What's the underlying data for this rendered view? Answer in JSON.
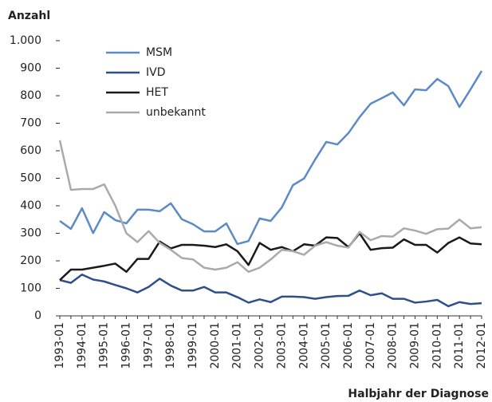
{
  "chart_data": {
    "type": "line",
    "y_label": "Anzahl",
    "x_label": "Halbjahr der Diagnose",
    "categories": [
      "1993-01",
      null,
      "1994-01",
      null,
      "1995-01",
      null,
      "1996-01",
      null,
      "1997-01",
      null,
      "1998-01",
      null,
      "1999-01",
      null,
      "2000-01",
      null,
      "2001-01",
      null,
      "2002-01",
      null,
      "2003-01",
      null,
      "2004-01",
      null,
      "2005-01",
      null,
      "2006-01",
      null,
      "2007-01",
      null,
      "2008-01",
      null,
      "2009-01",
      null,
      "2010-01",
      null,
      "2011-01",
      null,
      "2012-01"
    ],
    "series": [
      {
        "name": "MSM",
        "color": "#5b8ac6",
        "values": [
          345,
          316,
          391,
          301,
          377,
          348,
          336,
          386,
          386,
          380,
          409,
          351,
          333,
          307,
          307,
          336,
          261,
          272,
          354,
          345,
          394,
          475,
          499,
          568,
          632,
          623,
          664,
          722,
          771,
          791,
          812,
          765,
          823,
          820,
          861,
          835,
          759,
          823,
          890
        ]
      },
      {
        "name": "IVD",
        "color": "#2e4f8a",
        "values": [
          130,
          120,
          150,
          132,
          125,
          112,
          100,
          85,
          105,
          135,
          110,
          92,
          92,
          105,
          85,
          85,
          68,
          48,
          60,
          50,
          70,
          70,
          68,
          62,
          68,
          72,
          73,
          92,
          75,
          82,
          62,
          62,
          48,
          52,
          58,
          35,
          50,
          43,
          46
        ]
      },
      {
        "name": "HET",
        "color": "#1a1a1a",
        "values": [
          130,
          168,
          168,
          175,
          182,
          190,
          160,
          207,
          207,
          270,
          245,
          258,
          258,
          255,
          250,
          260,
          235,
          185,
          265,
          240,
          250,
          235,
          260,
          255,
          285,
          283,
          250,
          300,
          240,
          246,
          248,
          278,
          258,
          258,
          230,
          265,
          285,
          263,
          260
        ]
      },
      {
        "name": "unbekannt",
        "color": "#aaaaaa",
        "values": [
          638,
          458,
          461,
          461,
          478,
          400,
          300,
          268,
          308,
          265,
          240,
          210,
          205,
          175,
          168,
          175,
          195,
          160,
          175,
          205,
          240,
          235,
          222,
          255,
          268,
          255,
          248,
          305,
          275,
          290,
          288,
          318,
          310,
          298,
          315,
          317,
          350,
          318,
          322
        ]
      }
    ],
    "ylim": [
      0,
      1000
    ],
    "yticks": [
      0,
      100,
      200,
      300,
      400,
      500,
      600,
      700,
      800,
      900,
      {
        "value": 1000,
        "label": "1.000"
      }
    ],
    "legend": "upper left"
  }
}
